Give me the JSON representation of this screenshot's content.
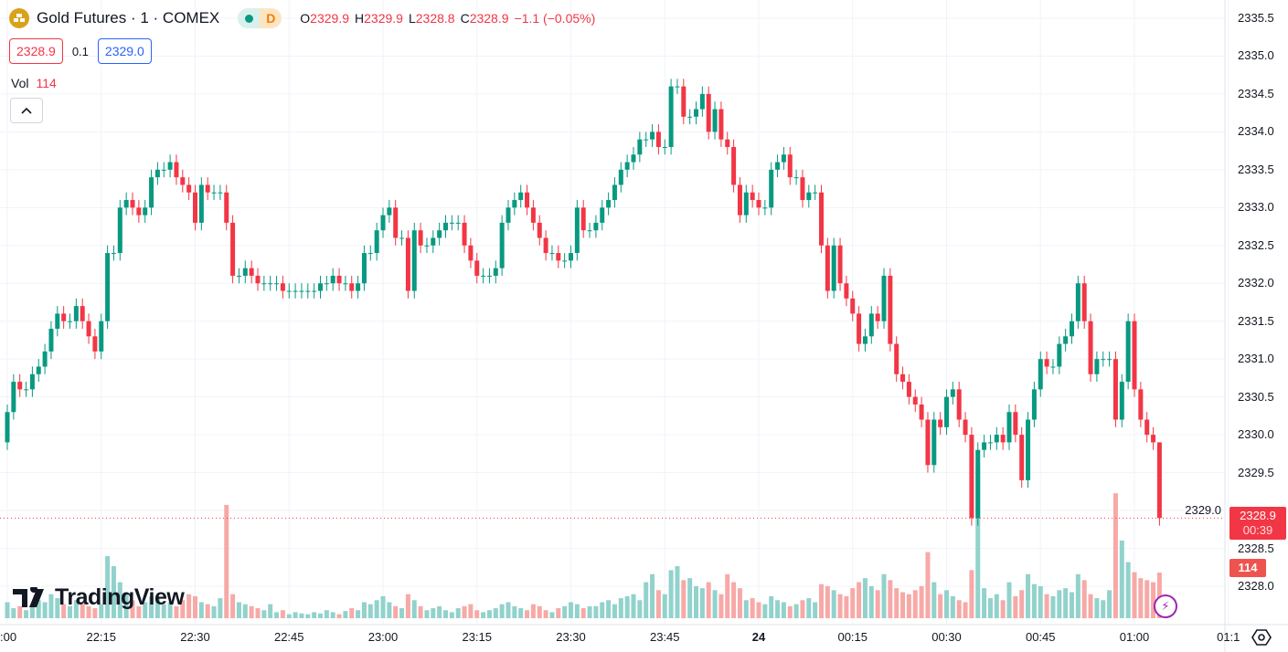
{
  "legend": {
    "symbol_icon": "gold-bars-icon",
    "title": "Gold Futures · 1 · COMEX",
    "status_dot_color": "#089981",
    "status_letter": "D",
    "o_label": "O",
    "o": "2329.9",
    "h_label": "H",
    "h": "2329.9",
    "l_label": "L",
    "l": "2328.8",
    "c_label": "C",
    "c": "2328.9",
    "change": "−1.1 (−0.05%)",
    "sell_price": "2328.9",
    "spread": "0.1",
    "buy_price": "2329.0",
    "vol_label": "Vol",
    "vol_value": "114",
    "collapse_icon": "chevron-up-icon"
  },
  "logo": {
    "text": "TradingView"
  },
  "price_badge": {
    "price": "2328.9",
    "countdown": "00:39"
  },
  "volume_badge": "114",
  "colors": {
    "up": "#089981",
    "down": "#f23645",
    "vol_up": "#92d2cc",
    "vol_down": "#f7a9a7",
    "last_price_line": "#f23645"
  },
  "chart_data": {
    "type": "candlestick",
    "interval_minutes": 1,
    "start_time": "22:00",
    "ylim": [
      2327.6,
      2335.7
    ],
    "grid": true,
    "y_ticks": [
      "2335.5",
      "2335.0",
      "2334.5",
      "2334.0",
      "2333.5",
      "2333.0",
      "2332.5",
      "2332.0",
      "2331.5",
      "2331.0",
      "2330.5",
      "2330.0",
      "2329.5",
      "2329.0",
      "2328.5",
      "2328.0"
    ],
    "x_ticks": [
      ":00",
      "22:15",
      "22:30",
      "22:45",
      "23:00",
      "23:15",
      "23:30",
      "23:45",
      "24",
      "00:15",
      "00:30",
      "00:45",
      "01:00",
      "01:1"
    ],
    "last_candle": {
      "open": 2329.9,
      "high": 2329.9,
      "low": 2328.8,
      "close": 2328.9,
      "volume": 114
    },
    "closes": [
      2330.3,
      2330.7,
      2330.6,
      2330.6,
      2330.8,
      2330.9,
      2331.1,
      2331.4,
      2331.6,
      2331.5,
      2331.5,
      2331.7,
      2331.5,
      2331.3,
      2331.1,
      2331.5,
      2332.4,
      2332.4,
      2333.0,
      2333.1,
      2333.0,
      2332.9,
      2333.0,
      2333.4,
      2333.5,
      2333.5,
      2333.6,
      2333.4,
      2333.3,
      2333.2,
      2332.8,
      2333.3,
      2333.2,
      2333.2,
      2333.2,
      2332.8,
      2332.1,
      2332.1,
      2332.2,
      2332.1,
      2332.0,
      2332.0,
      2332.0,
      2332.0,
      2331.9,
      2331.9,
      2331.9,
      2331.9,
      2331.9,
      2331.9,
      2332.0,
      2332.0,
      2332.1,
      2332.0,
      2332.0,
      2331.9,
      2332.0,
      2332.4,
      2332.4,
      2332.7,
      2332.9,
      2333.0,
      2332.6,
      2332.6,
      2331.9,
      2332.7,
      2332.5,
      2332.5,
      2332.6,
      2332.7,
      2332.8,
      2332.8,
      2332.8,
      2332.5,
      2332.3,
      2332.1,
      2332.1,
      2332.1,
      2332.2,
      2332.8,
      2333.0,
      2333.1,
      2333.2,
      2333.0,
      2332.8,
      2332.6,
      2332.4,
      2332.4,
      2332.3,
      2332.3,
      2332.4,
      2333.0,
      2332.7,
      2332.7,
      2332.8,
      2333.0,
      2333.1,
      2333.3,
      2333.5,
      2333.6,
      2333.7,
      2333.9,
      2333.9,
      2334.0,
      2333.8,
      2333.8,
      2334.6,
      2334.6,
      2334.2,
      2334.2,
      2334.3,
      2334.5,
      2334.0,
      2334.3,
      2333.9,
      2333.8,
      2333.3,
      2332.9,
      2333.2,
      2333.1,
      2333.0,
      2333.0,
      2333.5,
      2333.6,
      2333.7,
      2333.4,
      2333.4,
      2333.1,
      2333.2,
      2333.2,
      2332.5,
      2331.9,
      2332.5,
      2332.0,
      2331.8,
      2331.6,
      2331.2,
      2331.3,
      2331.6,
      2331.5,
      2332.1,
      2331.2,
      2330.8,
      2330.7,
      2330.5,
      2330.4,
      2330.2,
      2329.6,
      2330.2,
      2330.1,
      2330.5,
      2330.6,
      2330.2,
      2330.0,
      2328.9,
      2329.8,
      2329.9,
      2329.9,
      2330.0,
      2329.9,
      2330.3,
      2330.0,
      2329.4,
      2330.2,
      2330.6,
      2331.0,
      2330.9,
      2330.9,
      2331.2,
      2331.3,
      2331.5,
      2332.0,
      2331.5,
      2330.8,
      2331.0,
      2331.0,
      2331.0,
      2330.2,
      2330.7,
      2331.5,
      2330.6,
      2330.2,
      2330.0,
      2329.9,
      2328.9
    ],
    "volumes": [
      40,
      25,
      30,
      20,
      35,
      45,
      40,
      60,
      50,
      35,
      30,
      45,
      40,
      30,
      25,
      35,
      155,
      130,
      90,
      60,
      45,
      30,
      40,
      55,
      50,
      35,
      40,
      30,
      45,
      60,
      55,
      40,
      35,
      30,
      50,
      283,
      60,
      40,
      35,
      30,
      25,
      20,
      35,
      15,
      20,
      10,
      15,
      12,
      10,
      15,
      12,
      20,
      15,
      10,
      18,
      25,
      20,
      40,
      35,
      45,
      55,
      40,
      30,
      25,
      60,
      45,
      30,
      20,
      25,
      30,
      20,
      15,
      25,
      30,
      35,
      20,
      15,
      20,
      25,
      35,
      40,
      30,
      25,
      20,
      35,
      30,
      20,
      15,
      25,
      30,
      40,
      35,
      25,
      30,
      30,
      40,
      45,
      35,
      50,
      55,
      60,
      45,
      90,
      110,
      70,
      60,
      120,
      130,
      95,
      100,
      80,
      75,
      90,
      70,
      60,
      110,
      90,
      75,
      45,
      50,
      40,
      35,
      55,
      45,
      40,
      30,
      35,
      45,
      50,
      40,
      85,
      80,
      70,
      60,
      55,
      75,
      90,
      100,
      80,
      70,
      110,
      95,
      75,
      65,
      60,
      70,
      80,
      165,
      90,
      60,
      70,
      55,
      45,
      40,
      120,
      380,
      75,
      50,
      60,
      45,
      90,
      55,
      70,
      110,
      85,
      80,
      60,
      55,
      70,
      75,
      65,
      110,
      95,
      60,
      50,
      45,
      70,
      312,
      194,
      140,
      115,
      100,
      95,
      90,
      114
    ]
  }
}
